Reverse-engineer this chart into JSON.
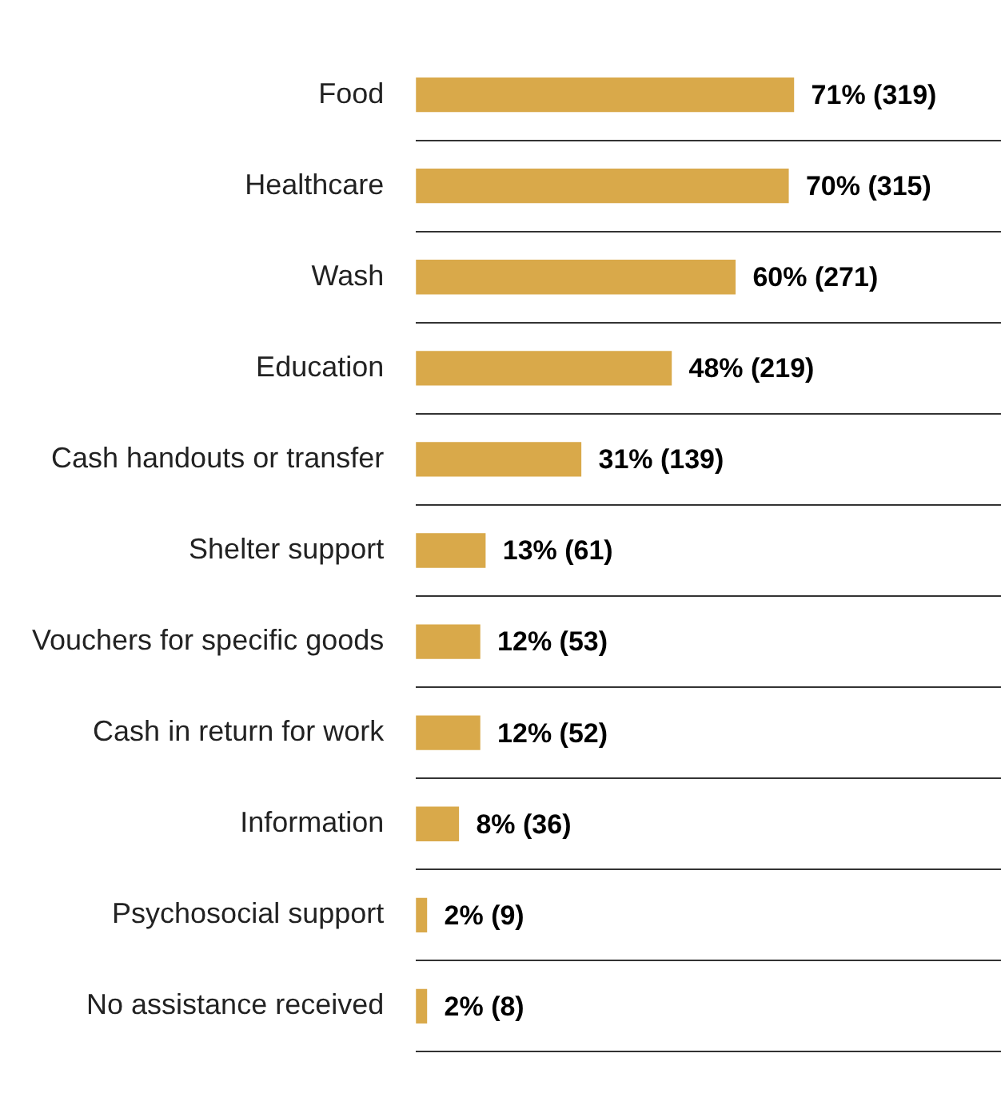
{
  "chart_data": {
    "type": "bar",
    "orientation": "horizontal",
    "categories": [
      "Food",
      "Healthcare",
      "Wash",
      "Education",
      "Cash handouts or transfer",
      "Shelter support",
      "Vouchers for specific goods",
      "Cash in return for work",
      "Information",
      "Psychosocial support",
      "No assistance received"
    ],
    "values": [
      71,
      70,
      60,
      48,
      31,
      13,
      12,
      12,
      8,
      2,
      2
    ],
    "value_labels": [
      "71% (319)",
      "70% (315)",
      "60% (271)",
      "48% (219)",
      "31% (139)",
      "13% (61)",
      "12% (53)",
      "12% (52)",
      "8% (36)",
      "2% (9)",
      "2% (8)"
    ],
    "color": "#d9a94a",
    "xlim": [
      0,
      110
    ],
    "grid": "y",
    "tick_labels": "y"
  }
}
